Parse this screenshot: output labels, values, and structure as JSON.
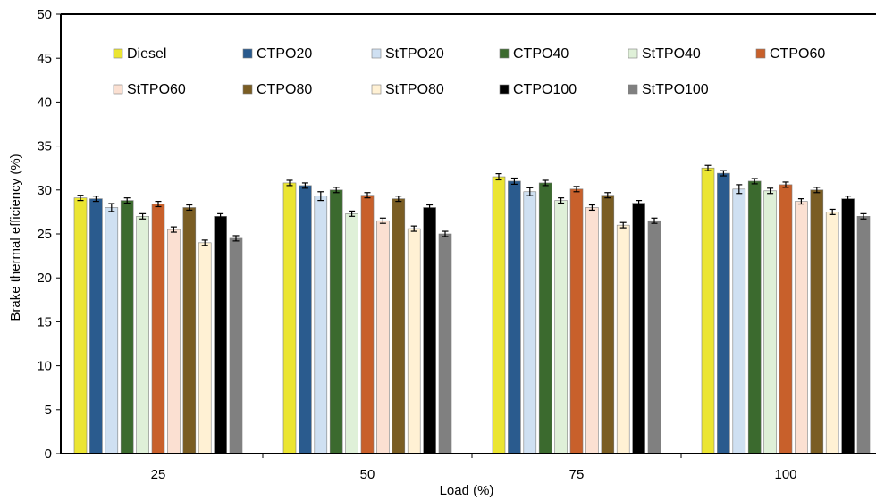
{
  "chart_data": {
    "type": "bar",
    "title": "",
    "xlabel": "Load (%)",
    "ylabel": "Brake thermal efficiency (%)",
    "ylim": [
      0,
      50
    ],
    "yticks": [
      0,
      5,
      10,
      15,
      20,
      25,
      30,
      35,
      40,
      45,
      50
    ],
    "categories": [
      "25",
      "50",
      "75",
      "100"
    ],
    "grid": false,
    "legend_position": "top",
    "error_bars": true,
    "series": [
      {
        "name": "Diesel",
        "color": "#ebe532",
        "values": [
          29.1,
          30.8,
          31.5,
          32.5
        ],
        "errors": [
          0.3,
          0.3,
          0.35,
          0.3
        ]
      },
      {
        "name": "CTPO20",
        "color": "#2a5b8e",
        "values": [
          29.0,
          30.5,
          31.0,
          31.9
        ],
        "errors": [
          0.3,
          0.3,
          0.35,
          0.3
        ]
      },
      {
        "name": "StTPO20",
        "color": "#cfe0f2",
        "values": [
          28.0,
          29.3,
          29.8,
          30.1
        ],
        "errors": [
          0.45,
          0.5,
          0.45,
          0.5
        ]
      },
      {
        "name": "CTPO40",
        "color": "#3b6a2e",
        "values": [
          28.8,
          30.0,
          30.8,
          31.0
        ],
        "errors": [
          0.3,
          0.3,
          0.3,
          0.3
        ]
      },
      {
        "name": "StTPO40",
        "color": "#dff0d8",
        "values": [
          27.0,
          27.3,
          28.8,
          29.9
        ],
        "errors": [
          0.3,
          0.3,
          0.3,
          0.3
        ]
      },
      {
        "name": "CTPO60",
        "color": "#c8602b",
        "values": [
          28.4,
          29.4,
          30.1,
          30.6
        ],
        "errors": [
          0.3,
          0.3,
          0.3,
          0.3
        ]
      },
      {
        "name": "StTPO60",
        "color": "#fbe0d2",
        "values": [
          25.5,
          26.5,
          28.0,
          28.7
        ],
        "errors": [
          0.3,
          0.3,
          0.3,
          0.3
        ]
      },
      {
        "name": "CTPO80",
        "color": "#7a5d23",
        "values": [
          28.0,
          29.0,
          29.4,
          30.0
        ],
        "errors": [
          0.3,
          0.3,
          0.3,
          0.3
        ]
      },
      {
        "name": "StTPO80",
        "color": "#fff1d4",
        "values": [
          24.0,
          25.6,
          26.0,
          27.5
        ],
        "errors": [
          0.3,
          0.3,
          0.3,
          0.3
        ]
      },
      {
        "name": "CTPO100",
        "color": "#000000",
        "values": [
          27.0,
          28.0,
          28.5,
          29.0
        ],
        "errors": [
          0.3,
          0.3,
          0.3,
          0.3
        ]
      },
      {
        "name": "StTPO100",
        "color": "#808080",
        "values": [
          24.5,
          25.0,
          26.5,
          27.0
        ],
        "errors": [
          0.3,
          0.3,
          0.3,
          0.3
        ]
      }
    ]
  }
}
